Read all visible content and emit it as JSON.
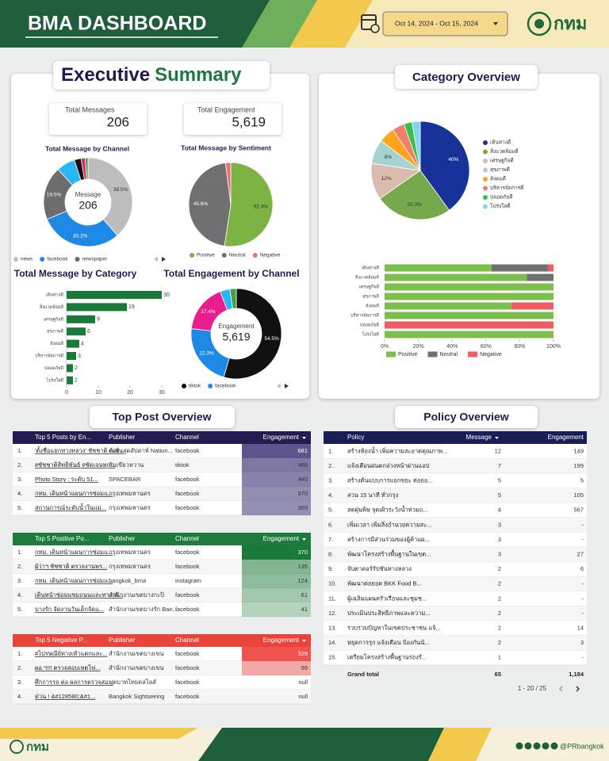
{
  "header": {
    "title": "BMA DASHBOARD",
    "date_range": "Oct 14, 2024 - Oct 15, 2024",
    "logo": "กทม"
  },
  "executive_summary": {
    "title_1": "Executive",
    "title_2": "Summary",
    "kpis": [
      {
        "label": "Total Messages",
        "value": "206"
      },
      {
        "label": "Total Engagement",
        "value": "5,619"
      }
    ]
  },
  "category_overview": {
    "title": "Category Overview"
  },
  "chart_data": [
    {
      "type": "donut",
      "title": "Total Message by Channel",
      "center_label": "Message",
      "center_value": 206,
      "categories": [
        "news",
        "facebook",
        "newspaper",
        null,
        null,
        null,
        null
      ],
      "values": [
        38.5,
        30.2,
        19.5,
        6.8,
        2.5,
        1.5,
        1.0
      ],
      "value_labels": [
        "38.5%",
        "30.2%",
        "19.5%",
        null,
        null,
        null,
        null
      ],
      "colors": [
        "#bdbdbd",
        "#1e88e5",
        "#6d6d6d",
        "#29b6f6",
        "#111111",
        "#e91e63",
        "#43a047"
      ]
    },
    {
      "type": "pie",
      "title": "Total Message by Sentiment",
      "categories": [
        "Positive",
        "Neutral",
        "Negative"
      ],
      "values": [
        52.4,
        45.6,
        2.0
      ],
      "value_labels": [
        "52.4%",
        "45.6%",
        null
      ],
      "colors": [
        "#7cb342",
        "#707070",
        "#e57373"
      ]
    },
    {
      "type": "bar",
      "orientation": "horizontal",
      "title": "Total Message by Category",
      "categories": [
        "เดินทางดี",
        "สิ่งแวดล้อมดี",
        "เศรษฐกิจดี",
        "สุขภาพดี",
        "สังคมดี",
        "บริหารจัดการดี",
        "ปลอดภัยดี",
        "โปร่งใสดี"
      ],
      "values": [
        30,
        19,
        9,
        6,
        4,
        3,
        2,
        2
      ],
      "color": "#1b7a3a",
      "xlim": [
        0,
        30
      ],
      "xticks": [
        0,
        10,
        20,
        30
      ]
    },
    {
      "type": "donut",
      "title": "Total Engagement by Channel",
      "center_label": "Engagement",
      "center_value": "5,619",
      "categories": [
        "tiktok",
        "facebook",
        null,
        null,
        null
      ],
      "values": [
        54.5,
        22.3,
        17.4,
        3.5,
        2.3
      ],
      "value_labels": [
        "54.5%",
        "22.3%",
        "17.4%",
        null,
        null
      ],
      "colors": [
        "#111111",
        "#1e88e5",
        "#e91e8c",
        "#29b6f6",
        "#43a047"
      ]
    },
    {
      "type": "pie",
      "categories": [
        "เดินทางดี",
        "สิ่งแวดล้อมดี",
        "เศรษฐกิจดี",
        "สุขภาพดี",
        "สังคมดี",
        "บริหารจัดการดี",
        "ปลอดภัยดี",
        "โปร่งใสดี"
      ],
      "values": [
        40,
        25.3,
        12,
        8,
        5.3,
        4,
        2.7,
        2.7
      ],
      "value_labels": [
        "40%",
        "25.3%",
        "12%",
        "8%",
        null,
        null,
        null,
        null
      ],
      "colors": [
        "#17339a",
        "#76a84c",
        "#d9bcae",
        "#a6d3d2",
        "#ffa41b",
        "#f47c6b",
        "#35c24d",
        "#80d4f0"
      ]
    },
    {
      "type": "stacked_bar",
      "orientation": "horizontal",
      "categories": [
        "เดินทางดี",
        "สิ่งแวดล้อมดี",
        "เศรษฐกิจดี",
        "สุขภาพดี",
        "สังคมดี",
        "บริหารจัดการดี",
        "ปลอดภัยดี",
        "โปร่งใสดี"
      ],
      "series": [
        {
          "name": "Positive",
          "color": "#7cbf4c",
          "values": [
            63.3,
            84.2,
            100,
            100,
            75,
            100,
            0,
            100
          ]
        },
        {
          "name": "Neutral",
          "color": "#707070",
          "values": [
            33.4,
            15.8,
            0,
            0,
            0,
            0,
            0,
            0
          ]
        },
        {
          "name": "Negative",
          "color": "#ee5b60",
          "values": [
            3.3,
            0,
            0,
            0,
            25,
            0,
            100,
            0
          ]
        }
      ],
      "xlim": [
        0,
        100
      ],
      "xticks": [
        {
          "value": 0,
          "label": "0%"
        },
        {
          "value": 20,
          "label": "20%"
        },
        {
          "value": 40,
          "label": "40%"
        },
        {
          "value": 60,
          "label": "60%"
        },
        {
          "value": 80,
          "label": "80%"
        },
        {
          "value": 100,
          "label": "100%"
        }
      ]
    }
  ],
  "top_post_overview": {
    "title": "Top Post Overview",
    "tables": [
      {
        "columns": [
          "Top 5 Posts by En...",
          "Publisher",
          "Channel",
          "Engagement"
        ],
        "rows": [
          [
            "1.",
            "'ตั้งชื่อแยกทางหลวง' ชัชชาติ ต้อง...",
            "เนชั่นสุดสัปดาห์ Nation...",
            "facebook",
            681
          ],
          [
            "2.",
            "#ชัชชาติสิทธิพันธุ์ #ชัดเจนทุก...",
            "ส้มเขียวหวาน",
            "tiktok",
            486
          ],
          [
            "3.",
            "Photo Story : ระดับ 51...",
            "SPACEBAR",
            "facebook",
            440
          ],
          [
            "4.",
            "กทม. เดินหน้าแผนการซ่อมแ...",
            "กรุงเทพมหานคร",
            "facebook",
            370
          ],
          [
            "5.",
            "สถานการณ์ระดับน้ำในแม่...",
            "กรุงเทพมหานคร",
            "facebook",
            369
          ]
        ]
      },
      {
        "columns": [
          "Top 5 Positive Po...",
          "Publisher",
          "Channel",
          "Engagement"
        ],
        "rows": [
          [
            "1.",
            "กทม. เดินหน้าแผนการซ่อมแ...",
            "กรุงเทพมหานคร",
            "facebook",
            370
          ],
          [
            "2.",
            "ผู้ว่าฯ ชัชชาติ ตรวจงานพร...",
            "กรุงเทพมหานคร",
            "facebook",
            135
          ],
          [
            "3.",
            "กทม. เดินหน้าแผนการซ่อมแ...",
            "bangkok_bma",
            "instagram",
            124
          ],
          [
            "4.",
            "เดินหน้าซ่อมแซมถนนและทางเท้...",
            "สำนักงานเขตบางกะปิ",
            "facebook",
            61
          ],
          [
            "5.",
            "บางรัก จัดงานวันเด็กจัดแ...",
            "สำนักงานเขตบางรัก Ban...",
            "facebook",
            41
          ]
        ]
      },
      {
        "columns": [
          "Top 5 Negative P...",
          "Publisher",
          "Channel",
          "Engagement"
        ],
        "rows": [
          [
            "1.",
            "#ไปรษณีย์ทางเท้าแตกและ...",
            "สำนักงานเขตบางเขน",
            "facebook",
            329
          ],
          [
            "2.",
            "ผอ.ฯ!!! ตรวจสอบเหตุไฟ...",
            "สำนักงานเขตบางเขน",
            "facebook",
            99
          ],
          [
            "3.",
            "ศึกการรถ ต่อ ผลการตรวจสอ...",
            "ฟุตบาทไทยคลไลส์",
            "facebook",
            "null"
          ],
          [
            "4.",
            "ด่วน ! &#128580;&#1...",
            "Bangkok Sightseeing",
            "facebook",
            "null"
          ]
        ]
      }
    ]
  },
  "policy_overview": {
    "title": "Policy Overview",
    "columns": [
      "Policy",
      "Message",
      "Engagement"
    ],
    "rows": [
      [
        "1.",
        "สร้างห้องน้ำ เพิ่มความสะอาดคุณภาพ...",
        "12",
        "149"
      ],
      [
        "2.",
        "แจ้งเตือนฝนตกล่วงหน้าผ่านแอป",
        "7",
        "199"
      ],
      [
        "3.",
        "สร้างต้นแบบการแยกขยะ ต่อยอ...",
        "5",
        "5"
      ],
      [
        "4.",
        "สวน 15 นาที ทั่วกรุง",
        "5",
        "105"
      ],
      [
        "5.",
        "ลดฝุ่นพิษ จุดเฝ้าระวังน้ำท่วมถ...",
        "4",
        "567"
      ],
      [
        "6.",
        "เพิ่มเวลา เพิ่มสิ่งอำนวยความสะ...",
        "3",
        "-"
      ],
      [
        "7.",
        "สร้างการมีส่วนร่วมของผู้ค้าแผ...",
        "3",
        "-"
      ],
      [
        "8.",
        "พัฒนาโครงสร้างพื้นฐานในเขต...",
        "3",
        "27"
      ],
      [
        "9.",
        "จับตาคอร์รัปชันทางหลวง",
        "2",
        "6"
      ],
      [
        "10.",
        "พัฒนาต่อยอด BKK Food B...",
        "2",
        "-"
      ],
      [
        "11.",
        "ผู้เฉลิมแผนครัวเรือนและชุมช...",
        "2",
        "-"
      ],
      [
        "12.",
        "ประเมินประสิทธิภาพและความ...",
        "2",
        "-"
      ],
      [
        "13.",
        "รวบรวมปัญหาในเขตประชาชน แจ้...",
        "2",
        "14"
      ],
      [
        "14.",
        "หยุดการรุก แจ้งเตือน ป้องกันน้...",
        "2",
        "3"
      ],
      [
        "15.",
        "เตรียมโครงสร้างพื้นฐานรองรั...",
        "1",
        "-"
      ]
    ],
    "total": [
      "Grand total",
      "65",
      "1,184"
    ],
    "pagination": "1 - 20 / 25"
  },
  "footer": {
    "logo": "กทม",
    "handle": "@PRbangkok"
  }
}
